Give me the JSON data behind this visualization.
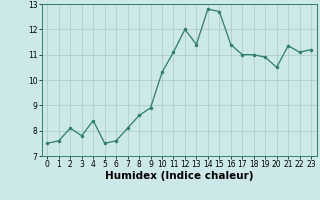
{
  "x": [
    0,
    1,
    2,
    3,
    4,
    5,
    6,
    7,
    8,
    9,
    10,
    11,
    12,
    13,
    14,
    15,
    16,
    17,
    18,
    19,
    20,
    21,
    22,
    23
  ],
  "y": [
    7.5,
    7.6,
    8.1,
    7.8,
    8.4,
    7.5,
    7.6,
    8.1,
    8.6,
    8.9,
    10.3,
    11.1,
    12.0,
    11.4,
    12.8,
    12.7,
    11.4,
    11.0,
    11.0,
    10.9,
    10.5,
    11.35,
    11.1,
    11.2
  ],
  "xlabel": "Humidex (Indice chaleur)",
  "ylim": [
    7,
    13
  ],
  "xlim": [
    -0.5,
    23.5
  ],
  "yticks": [
    7,
    8,
    9,
    10,
    11,
    12,
    13
  ],
  "xticks": [
    0,
    1,
    2,
    3,
    4,
    5,
    6,
    7,
    8,
    9,
    10,
    11,
    12,
    13,
    14,
    15,
    16,
    17,
    18,
    19,
    20,
    21,
    22,
    23
  ],
  "line_color": "#2e7d6e",
  "marker_color": "#2e7d6e",
  "bg_color": "#cce8e8",
  "grid_color": "#b0cccc",
  "tick_label_fontsize": 5.5,
  "xlabel_fontsize": 7.5,
  "xlabel_fontweight": "bold"
}
